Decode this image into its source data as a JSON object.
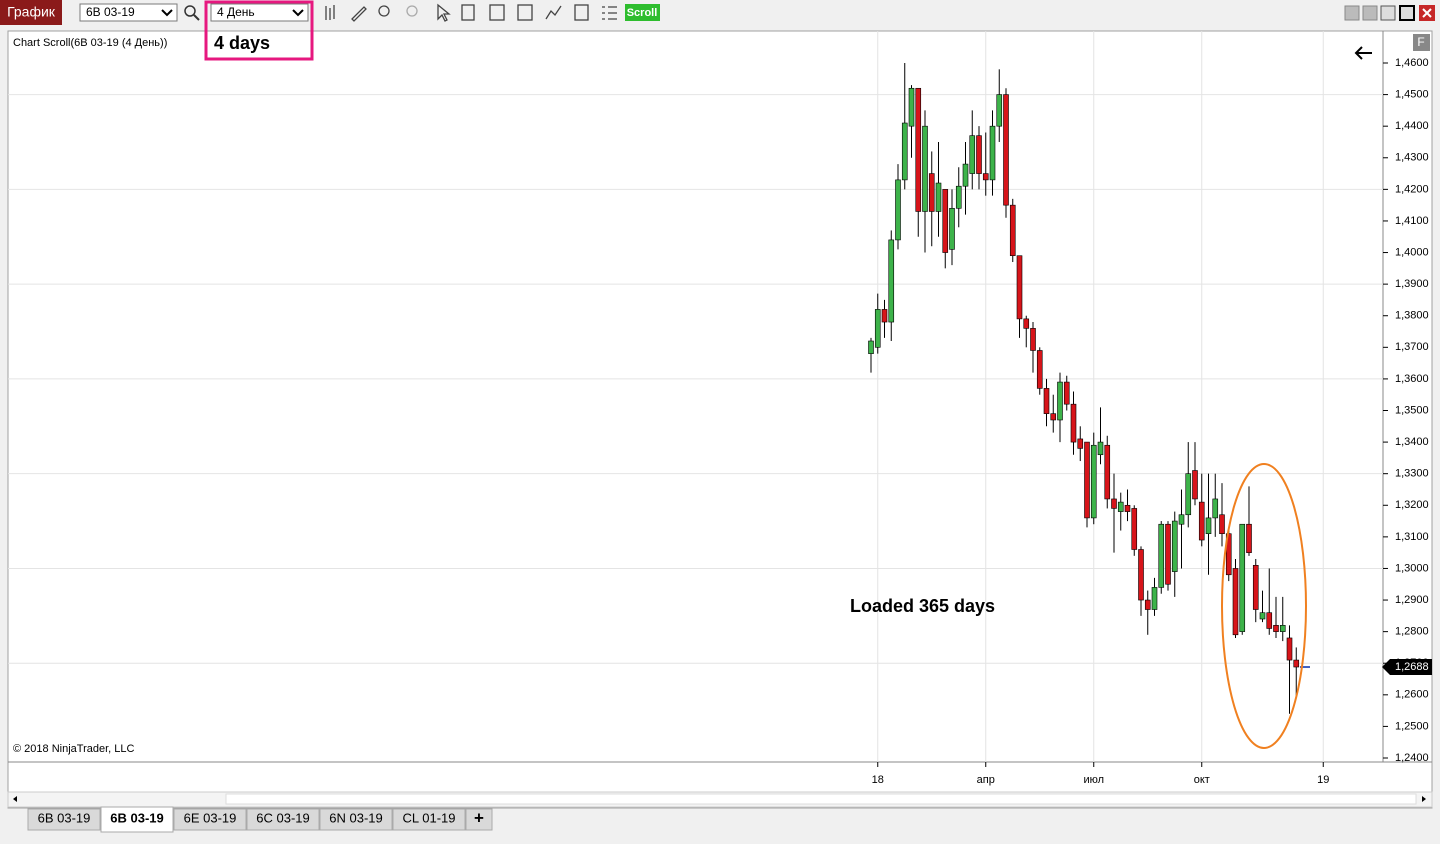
{
  "toolbar": {
    "window_title": "График",
    "instrument": "6B 03-19",
    "interval": "4 День",
    "scroll_button": "Scroll"
  },
  "chart_data": {
    "type": "candlestick",
    "title": "Chart Scroll(6B 03-19 (4 День))",
    "copyright": "© 2018 NinjaTrader, LLC",
    "categories": [
      null,
      "18",
      null,
      null,
      null,
      null,
      null,
      null,
      null,
      null,
      null,
      null,
      null,
      null,
      null,
      null,
      null,
      "апр",
      null,
      null,
      null,
      null,
      null,
      null,
      null,
      null,
      null,
      null,
      null,
      null,
      null,
      null,
      null,
      "июл",
      null,
      null,
      null,
      null,
      null,
      null,
      null,
      null,
      null,
      null,
      null,
      null,
      null,
      null,
      null,
      "окт",
      null,
      null,
      null,
      null,
      null,
      null,
      null,
      null,
      null,
      null,
      null,
      null,
      null,
      null,
      null,
      null,
      null,
      "19"
    ],
    "open": [
      1.368,
      1.37,
      1.382,
      1.378,
      1.404,
      1.423,
      1.44,
      1.452,
      1.413,
      1.425,
      1.413,
      1.42,
      1.401,
      1.414,
      1.421,
      1.425,
      1.437,
      1.425,
      1.423,
      1.44,
      1.45,
      1.415,
      1.399,
      1.379,
      1.376,
      1.369,
      1.357,
      1.349,
      1.347,
      1.359,
      1.352,
      1.341,
      1.34,
      1.316,
      1.336,
      1.339,
      1.322,
      1.318,
      1.32,
      1.319,
      1.306,
      1.29,
      1.287,
      1.294,
      1.314,
      1.299,
      1.314,
      1.317,
      1.331,
      1.321,
      1.311,
      1.316,
      1.317,
      1.311,
      1.3,
      1.28,
      1.314,
      1.301,
      1.284,
      1.286,
      1.282,
      1.28,
      1.278,
      1.271,
      null,
      null,
      null,
      null
    ],
    "high": [
      1.373,
      1.387,
      1.385,
      1.407,
      1.428,
      1.46,
      1.453,
      1.452,
      1.445,
      1.432,
      1.435,
      1.42,
      1.42,
      1.427,
      1.435,
      1.445,
      1.44,
      1.438,
      1.445,
      1.458,
      1.452,
      1.417,
      1.399,
      1.38,
      1.378,
      1.37,
      1.36,
      1.355,
      1.362,
      1.361,
      1.356,
      1.345,
      1.34,
      1.343,
      1.351,
      1.342,
      1.33,
      1.324,
      1.325,
      1.32,
      1.307,
      1.293,
      1.297,
      1.315,
      1.315,
      1.318,
      1.325,
      1.34,
      1.34,
      1.33,
      1.33,
      1.33,
      1.327,
      1.312,
      1.303,
      1.314,
      1.326,
      1.303,
      1.293,
      1.3,
      1.291,
      1.291,
      1.282,
      1.275,
      null,
      null,
      null,
      null
    ],
    "low": [
      1.362,
      1.368,
      1.373,
      1.372,
      1.401,
      1.42,
      1.43,
      1.405,
      1.4,
      1.402,
      1.405,
      1.395,
      1.396,
      1.408,
      1.412,
      1.42,
      1.42,
      1.418,
      1.418,
      1.435,
      1.411,
      1.397,
      1.373,
      1.37,
      1.362,
      1.355,
      1.345,
      1.343,
      1.34,
      1.35,
      1.336,
      1.334,
      1.313,
      1.314,
      1.333,
      1.319,
      1.305,
      1.312,
      1.315,
      1.304,
      1.285,
      1.279,
      1.285,
      1.292,
      1.293,
      1.291,
      1.3,
      1.313,
      1.32,
      1.307,
      1.298,
      1.31,
      1.307,
      1.296,
      1.278,
      1.279,
      1.304,
      1.283,
      1.283,
      1.279,
      1.278,
      1.277,
      1.254,
      1.259,
      null,
      null,
      null,
      null
    ],
    "close": [
      1.372,
      1.382,
      1.378,
      1.404,
      1.423,
      1.441,
      1.452,
      1.413,
      1.44,
      1.413,
      1.422,
      1.4,
      1.414,
      1.421,
      1.428,
      1.437,
      1.425,
      1.423,
      1.44,
      1.45,
      1.415,
      1.399,
      1.379,
      1.376,
      1.369,
      1.357,
      1.349,
      1.347,
      1.359,
      1.352,
      1.34,
      1.338,
      1.316,
      1.339,
      1.34,
      1.322,
      1.319,
      1.321,
      1.318,
      1.306,
      1.29,
      1.287,
      1.294,
      1.314,
      1.295,
      1.315,
      1.317,
      1.33,
      1.322,
      1.309,
      1.316,
      1.322,
      1.311,
      1.298,
      1.279,
      1.314,
      1.305,
      1.287,
      1.286,
      1.281,
      1.28,
      1.282,
      1.271,
      1.2688,
      null,
      null,
      null,
      null
    ],
    "up_color": "#3db34a",
    "down_color": "#d7141a",
    "ylim": [
      1.24,
      1.465
    ],
    "yticks": [
      {
        "value": 1.24,
        "label": "1,2400"
      },
      {
        "value": 1.25,
        "label": "1,2500"
      },
      {
        "value": 1.26,
        "label": "1,2600"
      },
      {
        "value": 1.27,
        "label": "1,2700"
      },
      {
        "value": 1.28,
        "label": "1,2800"
      },
      {
        "value": 1.29,
        "label": "1,2900"
      },
      {
        "value": 1.3,
        "label": "1,3000"
      },
      {
        "value": 1.31,
        "label": "1,3100"
      },
      {
        "value": 1.32,
        "label": "1,3200"
      },
      {
        "value": 1.33,
        "label": "1,3300"
      },
      {
        "value": 1.34,
        "label": "1,3400"
      },
      {
        "value": 1.35,
        "label": "1,3500"
      },
      {
        "value": 1.36,
        "label": "1,3600"
      },
      {
        "value": 1.37,
        "label": "1,3700"
      },
      {
        "value": 1.38,
        "label": "1,3800"
      },
      {
        "value": 1.39,
        "label": "1,3900"
      },
      {
        "value": 1.4,
        "label": "1,4000"
      },
      {
        "value": 1.41,
        "label": "1,4100"
      },
      {
        "value": 1.42,
        "label": "1,4200"
      },
      {
        "value": 1.43,
        "label": "1,4300"
      },
      {
        "value": 1.44,
        "label": "1,4400"
      },
      {
        "value": 1.45,
        "label": "1,4500"
      },
      {
        "value": 1.46,
        "label": "1,4600"
      }
    ],
    "last_price": {
      "value": 1.2688,
      "label": "1,2688"
    },
    "grid": true
  },
  "annotations": {
    "interval_note": "4 days",
    "loaded_note": "Loaded 365 days",
    "panel_button": "F"
  },
  "tabs": [
    "6B 03-19",
    "6B 03-19",
    "6E 03-19",
    "6C 03-19",
    "6N 03-19",
    "CL 01-19",
    "+"
  ]
}
